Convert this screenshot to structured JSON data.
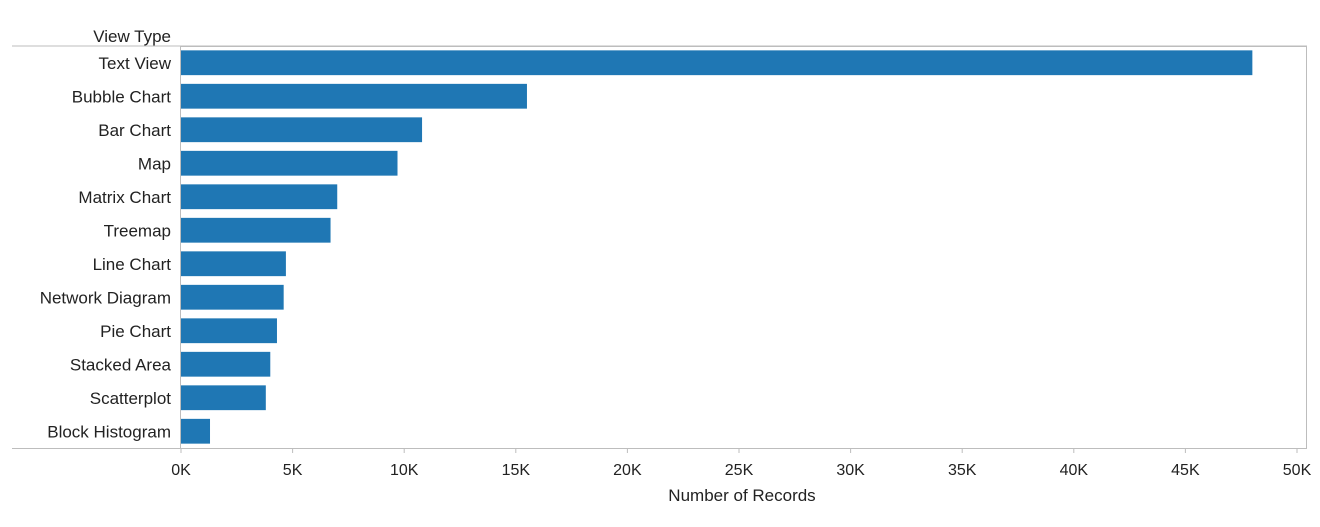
{
  "chart_data": {
    "type": "bar",
    "orientation": "horizontal",
    "row_header": "View Type",
    "xlabel": "Number of Records",
    "ylabel": "",
    "xlim": [
      0,
      50000
    ],
    "x_ticks": [
      0,
      5000,
      10000,
      15000,
      20000,
      25000,
      30000,
      35000,
      40000,
      45000,
      50000
    ],
    "x_tick_labels": [
      "0K",
      "5K",
      "10K",
      "15K",
      "20K",
      "25K",
      "30K",
      "35K",
      "40K",
      "45K",
      "50K"
    ],
    "categories": [
      "Text View",
      "Bubble Chart",
      "Bar Chart",
      "Map",
      "Matrix Chart",
      "Treemap",
      "Line Chart",
      "Network Diagram",
      "Pie Chart",
      "Stacked Area",
      "Scatterplot",
      "Block Histogram"
    ],
    "values": [
      48000,
      15500,
      10800,
      9700,
      7000,
      6700,
      4700,
      4600,
      4300,
      4000,
      3800,
      1300
    ],
    "bar_color": "#1f77b4",
    "grid": false
  }
}
